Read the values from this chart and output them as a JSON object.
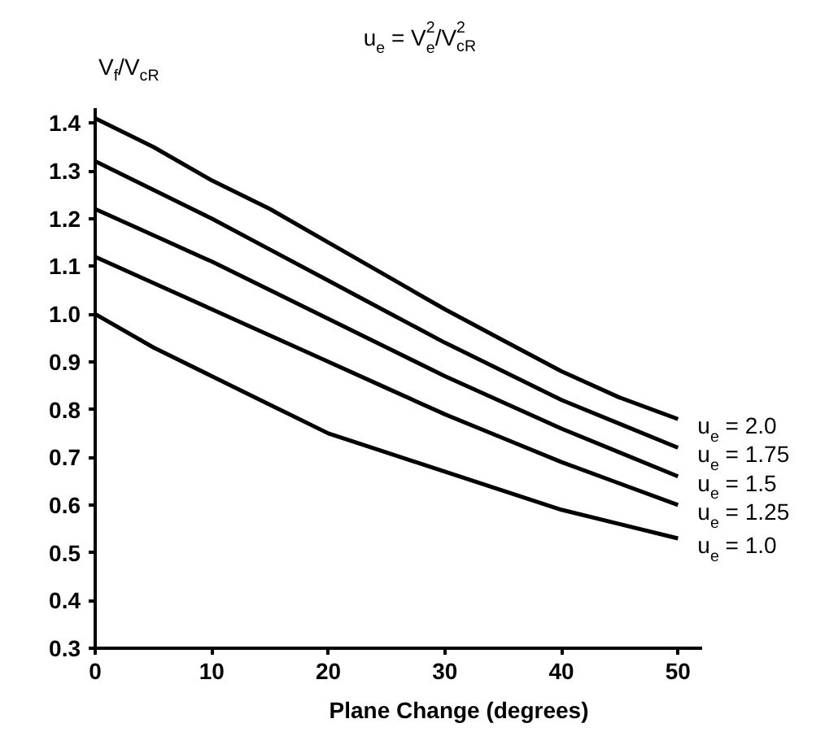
{
  "chart_data": {
    "type": "line",
    "title": "u$_{e}$ = V$_{e}$$^{2}$/V$_{cR}$$^{2}$",
    "xlabel": "Plane Change (degrees)",
    "ylabel": "V$_{f}$/V$_{cR}$",
    "x": [
      0,
      5,
      10,
      15,
      20,
      25,
      30,
      35,
      40,
      45,
      50
    ],
    "series": [
      {
        "name": "u$_{e}$ = 2.0",
        "color": "#000000",
        "values": [
          1.41,
          1.35,
          1.28,
          1.22,
          1.15,
          1.08,
          1.01,
          0.945,
          0.88,
          0.825,
          0.78
        ]
      },
      {
        "name": "u$_{e}$ = 1.75",
        "color": "#000000",
        "values": [
          1.32,
          1.26,
          1.2,
          1.135,
          1.07,
          1.005,
          0.94,
          0.88,
          0.82,
          0.77,
          0.72
        ]
      },
      {
        "name": "u$_{e}$ = 1.5",
        "color": "#000000",
        "values": [
          1.22,
          1.165,
          1.11,
          1.05,
          0.99,
          0.93,
          0.87,
          0.815,
          0.76,
          0.71,
          0.66
        ]
      },
      {
        "name": "u$_{e}$ = 1.25",
        "color": "#000000",
        "values": [
          1.12,
          1.065,
          1.01,
          0.955,
          0.9,
          0.845,
          0.79,
          0.74,
          0.69,
          0.645,
          0.6
        ]
      },
      {
        "name": "u$_{e}$ = 1.0",
        "color": "#000000",
        "values": [
          1.0,
          0.93,
          0.87,
          0.81,
          0.75,
          0.71,
          0.67,
          0.63,
          0.59,
          0.56,
          0.53
        ]
      }
    ],
    "xlim": [
      0,
      52
    ],
    "ylim": [
      0.3,
      1.43
    ],
    "xticks": [
      0,
      10,
      20,
      30,
      40,
      50
    ],
    "yticks": [
      0.3,
      0.4,
      0.5,
      0.6,
      0.7,
      0.8,
      0.9,
      {
        "value": 1,
        "label": "1.0"
      },
      1.1,
      1.2,
      1.3,
      1.4
    ],
    "grid": false,
    "legend": false,
    "marker": "none",
    "line_style": "solid"
  }
}
